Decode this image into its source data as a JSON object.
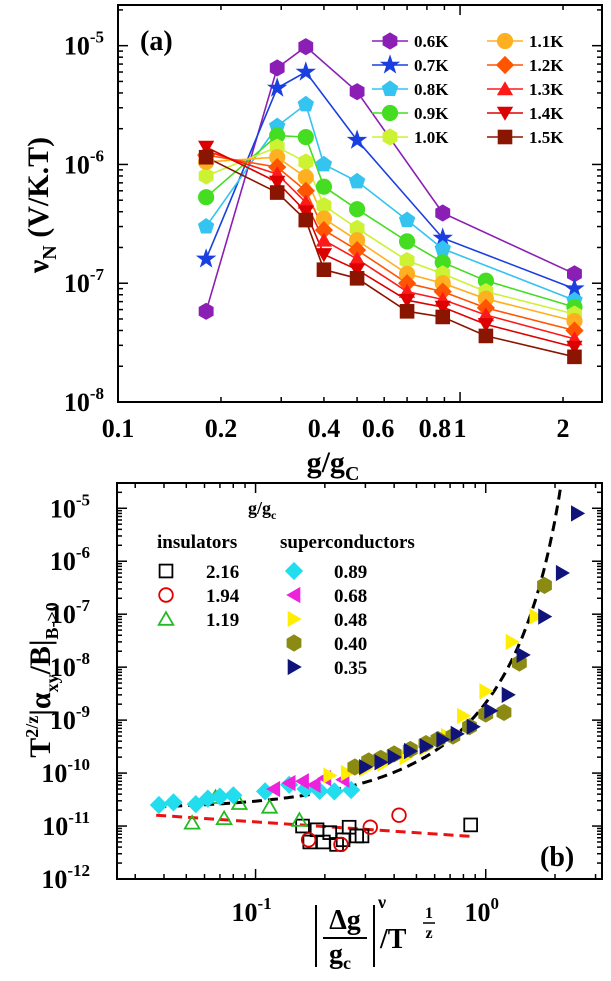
{
  "chart_data": [
    {
      "type": "scatter",
      "panel_label": "(a)",
      "xlabel": {
        "base": "g/g",
        "sub": "C"
      },
      "ylabel": {
        "base": "ν",
        "sub": "N",
        "rest": " (V/K.T)"
      },
      "xscale": "log",
      "yscale": "log",
      "xlim": [
        0.1,
        2.6
      ],
      "ylim": [
        1e-08,
        2.2e-05
      ],
      "xticks": [
        {
          "v": 0.1,
          "label": "0.1"
        },
        {
          "v": 0.2,
          "label": "0.2"
        },
        {
          "v": 0.4,
          "label": "0.4"
        },
        {
          "v": 0.6,
          "label": "0.6"
        },
        {
          "v": 0.8,
          "label": "0.8"
        },
        {
          "v": 1,
          "label": "1"
        },
        {
          "v": 2,
          "label": "2"
        }
      ],
      "yticks": [
        {
          "v": 1e-08,
          "mant": "10",
          "exp": "-8"
        },
        {
          "v": 1e-07,
          "mant": "10",
          "exp": "-7"
        },
        {
          "v": 1e-06,
          "mant": "10",
          "exp": "-6"
        },
        {
          "v": 1e-05,
          "mant": "10",
          "exp": "-5"
        }
      ],
      "x": [
        0.181,
        0.292,
        0.354,
        0.4,
        0.5,
        0.7,
        0.89,
        1.19,
        2.16
      ],
      "series": [
        {
          "name": "0.6K",
          "color": "#8b1fb5",
          "marker": "hexagon",
          "values": [
            5.8e-08,
            6.5e-06,
            9.8e-06,
            null,
            4.1e-06,
            null,
            3.9e-07,
            null,
            1.2e-07
          ]
        },
        {
          "name": "0.7K",
          "color": "#1a3fe0",
          "marker": "star",
          "values": [
            1.6e-07,
            4.4e-06,
            6e-06,
            null,
            1.6e-06,
            null,
            2.4e-07,
            null,
            9e-08
          ]
        },
        {
          "name": "0.8K",
          "color": "#35c3f0",
          "marker": "pentagon",
          "values": [
            3e-07,
            2.1e-06,
            3.2e-06,
            1e-06,
            7.2e-07,
            3.4e-07,
            1.95e-07,
            null,
            7.2e-08
          ]
        },
        {
          "name": "0.9K",
          "color": "#44dd22",
          "marker": "circle",
          "values": [
            5.3e-07,
            1.75e-06,
            1.7e-06,
            6.5e-07,
            4.2e-07,
            2.25e-07,
            1.5e-07,
            1.05e-07,
            6.3e-08
          ]
        },
        {
          "name": "1.0K",
          "color": "#ccf233",
          "marker": "hexagon",
          "values": [
            8e-07,
            1.4e-06,
            1.05e-06,
            4.5e-07,
            2.9e-07,
            1.55e-07,
            1.2e-07,
            8.5e-08,
            5.5e-08
          ]
        },
        {
          "name": "1.1K",
          "color": "#ffb020",
          "marker": "circle",
          "values": [
            1.05e-06,
            1.15e-06,
            7.8e-07,
            3.5e-07,
            2.3e-07,
            1.2e-07,
            1e-07,
            7.4e-08,
            4.8e-08
          ]
        },
        {
          "name": "1.2K",
          "color": "#ff5500",
          "marker": "diamond",
          "values": [
            1.2e-06,
            9.5e-07,
            6e-07,
            2.8e-07,
            1.9e-07,
            1e-07,
            8.5e-08,
            6.2e-08,
            4e-08
          ]
        },
        {
          "name": "1.3K",
          "color": "#ff1a1a",
          "marker": "triangle-up",
          "values": [
            1.3e-06,
            8.3e-07,
            4.8e-07,
            2.3e-07,
            1.6e-07,
            8.5e-08,
            7.3e-08,
            5.4e-08,
            3.4e-08
          ]
        },
        {
          "name": "1.4K",
          "color": "#dd0000",
          "marker": "triangle-down",
          "values": [
            1.4e-06,
            7.1e-07,
            4e-07,
            1.75e-07,
            1.3e-07,
            7.2e-08,
            6.3e-08,
            4.5e-08,
            2.9e-08
          ]
        },
        {
          "name": "1.5K",
          "color": "#8a1500",
          "marker": "square",
          "values": [
            1.15e-06,
            5.8e-07,
            3.4e-07,
            1.3e-07,
            1.1e-07,
            5.8e-08,
            5.2e-08,
            3.6e-08,
            2.4e-08
          ]
        }
      ]
    },
    {
      "type": "scatter",
      "panel_label": "(b)",
      "legend_title": {
        "base": "g/g",
        "sub": "c"
      },
      "legend_headers": {
        "insulators": "insulators",
        "superconductors": "superconductors"
      },
      "ylabel": {
        "t": "T",
        "texp": "2/z",
        "alpha": "|α",
        "sub": "xy",
        "b": "/B|",
        "bsub": "B->0"
      },
      "xlabel": {
        "num": "Δg",
        "den": "g",
        "densub": "c",
        "nu": "ν",
        "tpart": "/T",
        "fnum": "1",
        "fden": "z"
      },
      "xscale": "log",
      "yscale": "log",
      "xlim": [
        0.025,
        3.2
      ],
      "ylim": [
        1e-12,
        3e-05
      ],
      "xticks": [
        {
          "v": 0.1,
          "mant": "10",
          "exp": "-1"
        },
        {
          "v": 1,
          "mant": "10",
          "exp": "0"
        }
      ],
      "yticks": [
        {
          "v": 1e-12,
          "mant": "10",
          "exp": "-12"
        },
        {
          "v": 1e-11,
          "mant": "10",
          "exp": "-11"
        },
        {
          "v": 1e-10,
          "mant": "10",
          "exp": "-10"
        },
        {
          "v": 1e-09,
          "mant": "10",
          "exp": "-9"
        },
        {
          "v": 1e-08,
          "mant": "10",
          "exp": "-8"
        },
        {
          "v": 1e-07,
          "mant": "10",
          "exp": "-7"
        },
        {
          "v": 1e-06,
          "mant": "10",
          "exp": "-6"
        },
        {
          "v": 1e-05,
          "mant": "10",
          "exp": "-5"
        }
      ],
      "series": [
        {
          "name": "2.16",
          "group": "insulators",
          "color": "#000000",
          "marker": "square-open",
          "points": [
            [
              0.16,
              1e-11
            ],
            [
              0.172,
              5e-12
            ],
            [
              0.185,
              8.5e-12
            ],
            [
              0.197,
              5e-12
            ],
            [
              0.21,
              7.5e-12
            ],
            [
              0.225,
              4.5e-12
            ],
            [
              0.24,
              5.5e-12
            ],
            [
              0.255,
              9.5e-12
            ],
            [
              0.275,
              6.5e-12
            ],
            [
              0.29,
              6.5e-12
            ],
            [
              0.86,
              1.05e-11
            ]
          ]
        },
        {
          "name": "1.94",
          "group": "insulators",
          "color": "#e00000",
          "marker": "circle-open",
          "points": [
            [
              0.17,
              5.5e-12
            ],
            [
              0.235,
              4.5e-12
            ],
            [
              0.315,
              9.5e-12
            ],
            [
              0.42,
              1.6e-11
            ]
          ]
        },
        {
          "name": "1.19",
          "group": "insulators",
          "color": "#22bb22",
          "marker": "triangle-open",
          "points": [
            [
              0.053,
              1.15e-11
            ],
            [
              0.067,
              3.5e-11
            ],
            [
              0.073,
              1.4e-11
            ],
            [
              0.085,
              2.7e-11
            ],
            [
              0.115,
              2.3e-11
            ],
            [
              0.155,
              1.3e-11
            ]
          ]
        },
        {
          "name": "0.89",
          "group": "superconductors",
          "color": "#22ddee",
          "marker": "diamond",
          "points": [
            [
              0.038,
              2.5e-11
            ],
            [
              0.044,
              2.8e-11
            ],
            [
              0.055,
              2.6e-11
            ],
            [
              0.062,
              3.3e-11
            ],
            [
              0.07,
              3.6e-11
            ],
            [
              0.08,
              3.8e-11
            ],
            [
              0.11,
              4.5e-11
            ],
            [
              0.14,
              6e-11
            ],
            [
              0.165,
              5e-11
            ],
            [
              0.19,
              4.6e-11
            ],
            [
              0.22,
              4.5e-11
            ],
            [
              0.26,
              4.8e-11
            ]
          ]
        },
        {
          "name": "0.68",
          "group": "superconductors",
          "color": "#ee22dd",
          "marker": "triangle-left",
          "points": [
            [
              0.12,
              5e-11
            ],
            [
              0.14,
              6.5e-11
            ],
            [
              0.16,
              7e-11
            ],
            [
              0.18,
              6e-11
            ],
            [
              0.2,
              8e-11
            ],
            [
              0.24,
              7.5e-11
            ]
          ]
        },
        {
          "name": "0.48",
          "group": "superconductors",
          "color": "#ffee00",
          "marker": "triangle-right",
          "points": [
            [
              0.21,
              9e-11
            ],
            [
              0.25,
              1e-10
            ],
            [
              0.3,
              1.2e-10
            ],
            [
              0.36,
              1.5e-10
            ],
            [
              0.45,
              2e-10
            ],
            [
              0.55,
              3e-10
            ],
            [
              0.68,
              5e-10
            ],
            [
              0.8,
              1.2e-09
            ],
            [
              1.0,
              3.5e-09
            ],
            [
              1.3,
              3e-08
            ],
            [
              1.65,
              9e-08
            ]
          ]
        },
        {
          "name": "0.40",
          "group": "superconductors",
          "color": "#8b8b14",
          "marker": "hexagon",
          "points": [
            [
              0.27,
              1.3e-10
            ],
            [
              0.31,
              1.7e-10
            ],
            [
              0.35,
              1.9e-10
            ],
            [
              0.4,
              2.3e-10
            ],
            [
              0.47,
              2.8e-10
            ],
            [
              0.55,
              3.6e-10
            ],
            [
              0.62,
              4.3e-10
            ],
            [
              0.72,
              5e-10
            ],
            [
              0.85,
              7.5e-10
            ],
            [
              1.0,
              1.3e-09
            ],
            [
              1.2,
              1.4e-09
            ],
            [
              1.4,
              1.2e-08
            ],
            [
              1.8,
              3.5e-07
            ]
          ]
        },
        {
          "name": "0.35",
          "group": "superconductors",
          "color": "#10147a",
          "marker": "triangle-right",
          "points": [
            [
              0.3,
              1.3e-10
            ],
            [
              0.35,
              1.6e-10
            ],
            [
              0.4,
              2e-10
            ],
            [
              0.47,
              2.6e-10
            ],
            [
              0.55,
              3.2e-10
            ],
            [
              0.65,
              4.3e-10
            ],
            [
              0.75,
              5.5e-10
            ],
            [
              0.88,
              7.5e-10
            ],
            [
              1.05,
              1.5e-09
            ],
            [
              1.25,
              3e-09
            ],
            [
              1.45,
              1.7e-08
            ],
            [
              1.8,
              9e-08
            ],
            [
              2.15,
              6e-07
            ],
            [
              2.5,
              8e-06
            ]
          ]
        }
      ],
      "fits": [
        {
          "name": "superconductor-fit",
          "color": "#000000",
          "x0": 0.037,
          "y0": 2.3e-11,
          "xc": 3.0,
          "A": 2e-11,
          "p": 11.5
        },
        {
          "name": "insulator-fit",
          "color": "#ee1111",
          "x0": 0.037,
          "y1": 1.6e-11,
          "x1": 0.9,
          "y2": 6.3e-12
        }
      ]
    }
  ]
}
